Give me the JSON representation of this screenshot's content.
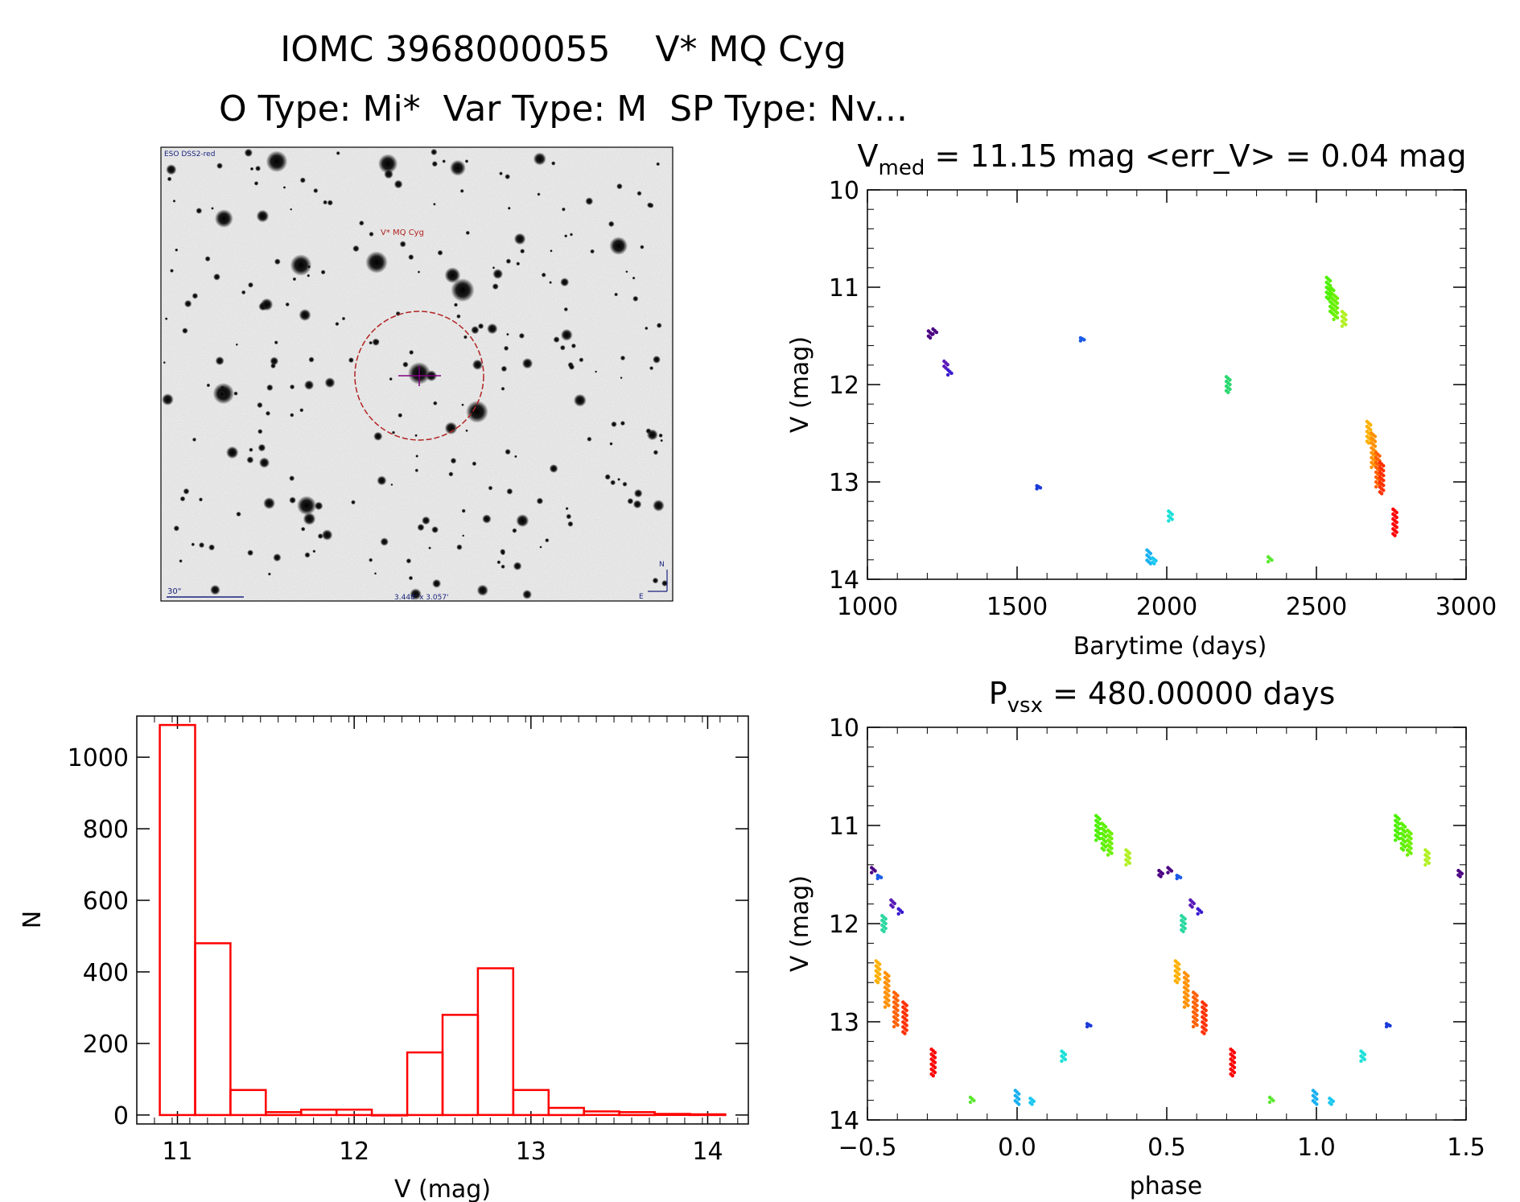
{
  "header": {
    "line1": "IOMC 3968000055    V* MQ Cyg",
    "line2": "O Type: Mi*  Var Type: M  SP Type: Nv..."
  },
  "finder": {
    "survey": "ESO DSS2-red",
    "target_label": "V* MQ Cyg",
    "scale": "30\"",
    "fov": "3.448' x 3.057'",
    "north": "N",
    "east": "E"
  },
  "colors": {
    "hist": "#ff0000",
    "circle": "#b22222",
    "axis": "#000000"
  },
  "chart_data": [
    {
      "id": "lightcurve",
      "type": "scatter",
      "title_main": "V",
      "title_sub": "med",
      "title_rest": " = 11.15 mag <err_V> = 0.04 mag",
      "xlabel": "Barytime (days)",
      "ylabel": "V (mag)",
      "xlim": [
        1000,
        3000
      ],
      "ylim": [
        10,
        14
      ],
      "xticks": [
        1000,
        1500,
        2000,
        2500,
        3000
      ],
      "yticks": [
        10,
        11,
        12,
        13,
        14
      ],
      "clusters": [
        {
          "x": 1210,
          "y0": 11.45,
          "y1": 11.52,
          "color": "#4b0082"
        },
        {
          "x": 1225,
          "y0": 11.43,
          "y1": 11.48,
          "color": "#4b0082"
        },
        {
          "x": 1262,
          "y0": 11.76,
          "y1": 11.83,
          "color": "#5a1ab8"
        },
        {
          "x": 1275,
          "y0": 11.85,
          "y1": 11.9,
          "color": "#3a1ad0"
        },
        {
          "x": 1572,
          "y0": 13.04,
          "y1": 13.07,
          "color": "#1a3ad8"
        },
        {
          "x": 1718,
          "y0": 11.52,
          "y1": 11.55,
          "color": "#1a5ae8"
        },
        {
          "x": 1940,
          "y0": 13.7,
          "y1": 13.84,
          "color": "#1ab0f0"
        },
        {
          "x": 1958,
          "y0": 13.78,
          "y1": 13.84,
          "color": "#1ac8f0"
        },
        {
          "x": 2012,
          "y0": 13.3,
          "y1": 13.4,
          "color": "#1ae0d8"
        },
        {
          "x": 2205,
          "y0": 11.92,
          "y1": 12.08,
          "color": "#2ad870"
        },
        {
          "x": 2345,
          "y0": 13.77,
          "y1": 13.82,
          "color": "#5ae830"
        },
        {
          "x": 2540,
          "y0": 10.9,
          "y1": 11.12,
          "color": "#4cf000"
        },
        {
          "x": 2552,
          "y0": 11.0,
          "y1": 11.28,
          "color": "#5cf000"
        },
        {
          "x": 2564,
          "y0": 11.08,
          "y1": 11.33,
          "color": "#6cf000"
        },
        {
          "x": 2592,
          "y0": 11.25,
          "y1": 11.4,
          "color": "#b0f020"
        },
        {
          "x": 2675,
          "y0": 12.38,
          "y1": 12.6,
          "color": "#ffb000"
        },
        {
          "x": 2690,
          "y0": 12.5,
          "y1": 12.85,
          "color": "#ff9000"
        },
        {
          "x": 2705,
          "y0": 12.7,
          "y1": 13.05,
          "color": "#ff6000"
        },
        {
          "x": 2718,
          "y0": 12.8,
          "y1": 13.12,
          "color": "#ff3000"
        },
        {
          "x": 2762,
          "y0": 13.28,
          "y1": 13.55,
          "color": "#ff0000"
        }
      ]
    },
    {
      "id": "histogram",
      "type": "bar",
      "xlabel": "V (mag)",
      "ylabel": "N",
      "xlim": [
        10.77,
        14.23
      ],
      "ylim": [
        -25,
        1115
      ],
      "xticks": [
        11,
        12,
        13,
        14
      ],
      "yticks": [
        0,
        200,
        400,
        600,
        800,
        1000
      ],
      "bin_width": 0.2,
      "bin_starts": [
        10.9,
        11.1,
        11.3,
        11.5,
        11.7,
        11.9,
        12.1,
        12.3,
        12.5,
        12.7,
        12.9,
        13.1,
        13.3,
        13.5,
        13.7,
        13.9
      ],
      "values": [
        1090,
        480,
        70,
        8,
        15,
        15,
        0,
        175,
        280,
        410,
        70,
        20,
        10,
        8,
        3,
        2
      ]
    },
    {
      "id": "phased",
      "type": "scatter",
      "title_main": "P",
      "title_sub": "vsx",
      "title_rest": " = 480.00000 days",
      "xlabel": "phase",
      "ylabel": "V (mag)",
      "xlim": [
        -0.5,
        1.5
      ],
      "ylim": [
        10,
        14
      ],
      "xticks": [
        -0.5,
        0.0,
        0.5,
        1.0,
        1.5
      ],
      "xtick_labels": [
        "−0.5",
        "0.0",
        "0.5",
        "1.0",
        "1.5"
      ],
      "yticks": [
        10,
        11,
        12,
        13,
        14
      ],
      "clusters": [
        {
          "x": 0.48,
          "y0": 11.46,
          "y1": 11.52,
          "color": "#4b0082"
        },
        {
          "x": 0.51,
          "y0": 11.43,
          "y1": 11.48,
          "color": "#4b0082"
        },
        {
          "x": 0.585,
          "y0": 11.76,
          "y1": 11.83,
          "color": "#5a1ab8"
        },
        {
          "x": 0.61,
          "y0": 11.85,
          "y1": 11.9,
          "color": "#3a1ad0"
        },
        {
          "x": 0.54,
          "y0": 11.51,
          "y1": 11.54,
          "color": "#1a5ae8"
        },
        {
          "x": 0.555,
          "y0": 11.92,
          "y1": 12.08,
          "color": "#2ad8a0"
        },
        {
          "x": 1.24,
          "y0": 13.02,
          "y1": 13.05,
          "color": "#1a3ad8"
        },
        {
          "x": 0.995,
          "y0": 13.7,
          "y1": 13.84,
          "color": "#1ab0f0"
        },
        {
          "x": 1.05,
          "y0": 13.78,
          "y1": 13.84,
          "color": "#1ac8f0"
        },
        {
          "x": 1.155,
          "y0": 13.3,
          "y1": 13.4,
          "color": "#1ae0d8"
        },
        {
          "x": 0.85,
          "y0": 13.77,
          "y1": 13.82,
          "color": "#5ae830"
        },
        {
          "x": 0.27,
          "y0": 10.9,
          "y1": 11.15,
          "color": "#4cf000"
        },
        {
          "x": 0.29,
          "y0": 10.98,
          "y1": 11.25,
          "color": "#5cf000"
        },
        {
          "x": 0.31,
          "y0": 11.05,
          "y1": 11.3,
          "color": "#6cf000"
        },
        {
          "x": 0.37,
          "y0": 11.25,
          "y1": 11.4,
          "color": "#b0f020"
        },
        {
          "x": 1.27,
          "y0": 10.9,
          "y1": 11.15,
          "color": "#4cf000"
        },
        {
          "x": 1.29,
          "y0": 10.98,
          "y1": 11.25,
          "color": "#5cf000"
        },
        {
          "x": 1.31,
          "y0": 11.05,
          "y1": 11.3,
          "color": "#6cf000"
        },
        {
          "x": 1.37,
          "y0": 11.25,
          "y1": 11.4,
          "color": "#b0f020"
        },
        {
          "x": 0.535,
          "y0": 12.38,
          "y1": 12.6,
          "color": "#ffb000"
        },
        {
          "x": 0.565,
          "y0": 12.5,
          "y1": 12.85,
          "color": "#ff9000"
        },
        {
          "x": 0.595,
          "y0": 12.7,
          "y1": 13.05,
          "color": "#ff6000"
        },
        {
          "x": 0.625,
          "y0": 12.8,
          "y1": 13.12,
          "color": "#ff3000"
        },
        {
          "x": 0.72,
          "y0": 13.28,
          "y1": 13.55,
          "color": "#ff0000"
        },
        {
          "x": -0.465,
          "y0": 12.38,
          "y1": 12.6,
          "color": "#ffb000"
        },
        {
          "x": -0.435,
          "y0": 12.5,
          "y1": 12.85,
          "color": "#ff9000"
        },
        {
          "x": -0.405,
          "y0": 12.7,
          "y1": 13.05,
          "color": "#ff6000"
        },
        {
          "x": -0.375,
          "y0": 12.8,
          "y1": 13.12,
          "color": "#ff3000"
        },
        {
          "x": -0.28,
          "y0": 13.28,
          "y1": 13.55,
          "color": "#ff0000"
        },
        {
          "x": -0.48,
          "y0": 11.43,
          "y1": 11.48,
          "color": "#4b0082"
        },
        {
          "x": -0.46,
          "y0": 11.51,
          "y1": 11.54,
          "color": "#1a5ae8"
        },
        {
          "x": -0.445,
          "y0": 11.92,
          "y1": 12.08,
          "color": "#2ad8a0"
        },
        {
          "x": -0.415,
          "y0": 11.76,
          "y1": 11.83,
          "color": "#5a1ab8"
        },
        {
          "x": -0.39,
          "y0": 11.85,
          "y1": 11.9,
          "color": "#3a1ad0"
        },
        {
          "x": 0.0,
          "y0": 13.7,
          "y1": 13.84,
          "color": "#1ab0f0"
        },
        {
          "x": 0.05,
          "y0": 13.78,
          "y1": 13.84,
          "color": "#1ac8f0"
        },
        {
          "x": 0.155,
          "y0": 13.3,
          "y1": 13.4,
          "color": "#1ae0d8"
        },
        {
          "x": 0.24,
          "y0": 13.02,
          "y1": 13.05,
          "color": "#1a3ad8"
        },
        {
          "x": -0.15,
          "y0": 13.77,
          "y1": 13.82,
          "color": "#5ae830"
        },
        {
          "x": 1.48,
          "y0": 11.46,
          "y1": 11.52,
          "color": "#4b0082"
        }
      ]
    }
  ]
}
